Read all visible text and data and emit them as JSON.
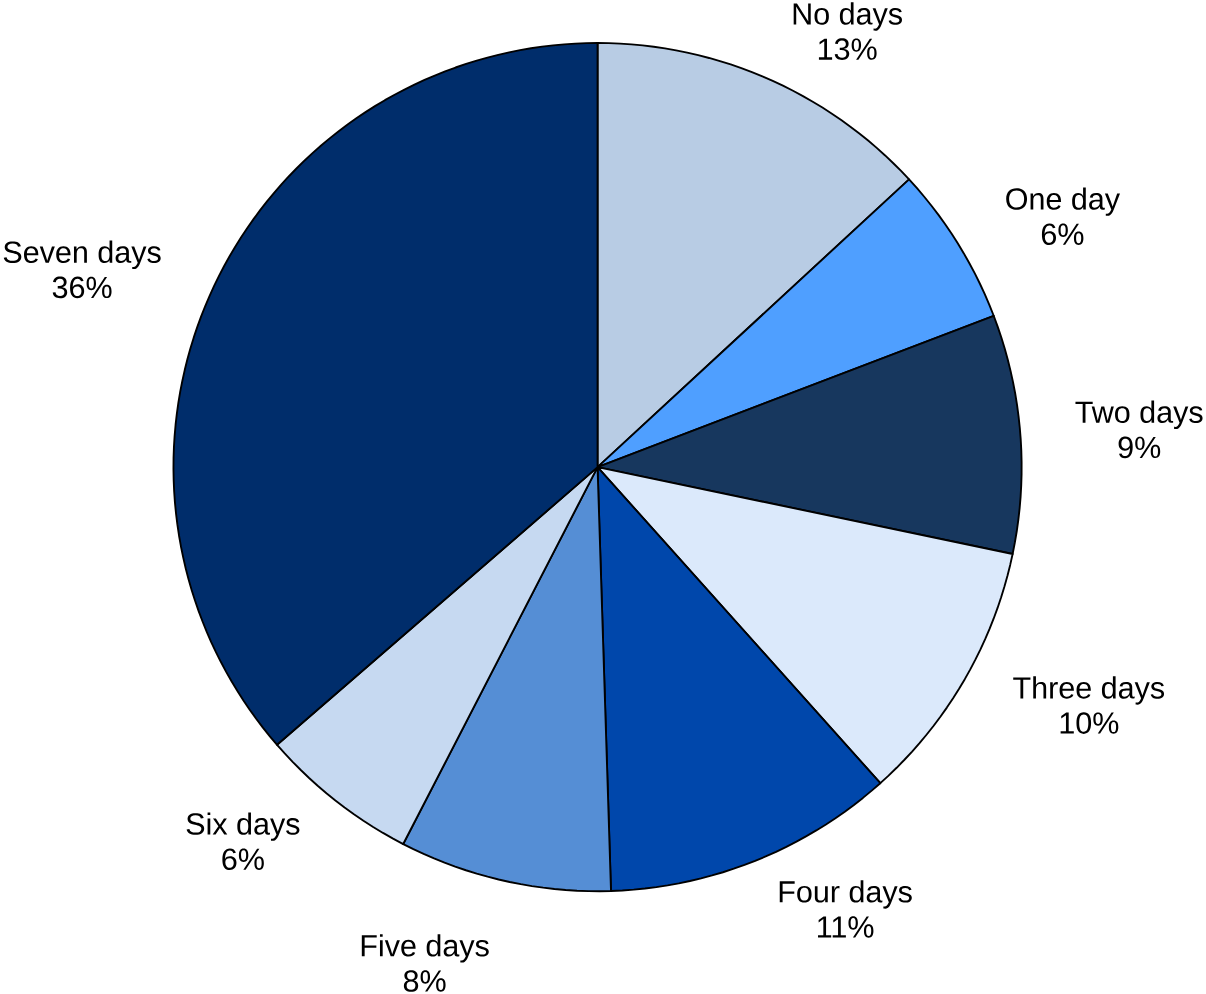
{
  "chart_data": {
    "type": "pie",
    "categories": [
      "No days",
      "One day",
      "Two days",
      "Three days",
      "Four days",
      "Five days",
      "Six days",
      "Seven days"
    ],
    "values": [
      13,
      6,
      9,
      10,
      11,
      8,
      6,
      36
    ],
    "value_labels": [
      "13%",
      "6%",
      "9%",
      "10%",
      "11%",
      "8%",
      "6%",
      "36%"
    ],
    "colors": [
      "#b8cce4",
      "#4f9fff",
      "#17375e",
      "#dbe9fb",
      "#0047ab",
      "#558ed5",
      "#c6d9f1",
      "#002d6b"
    ]
  }
}
